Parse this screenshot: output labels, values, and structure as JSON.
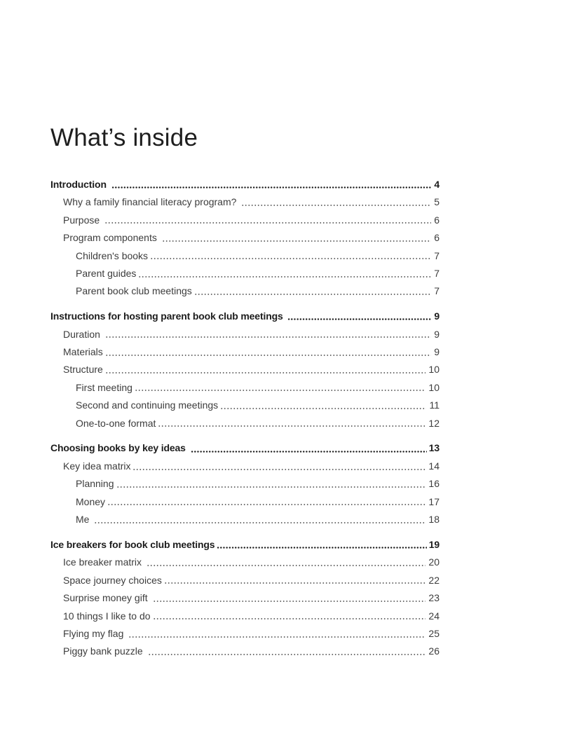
{
  "document": {
    "title": "What’s inside"
  },
  "colors": {
    "background": "#ffffff",
    "heading_text": "#1c1c1c",
    "body_text": "#3c3c3c"
  },
  "toc": {
    "sections": [
      {
        "heading": {
          "label": "Introduction ",
          "page": "4"
        },
        "items": [
          {
            "level": 2,
            "label": "Why a family financial literacy program? ",
            "page": "5"
          },
          {
            "level": 2,
            "label": "Purpose ",
            "page": "6"
          },
          {
            "level": 2,
            "label": "Program components ",
            "page": "6"
          },
          {
            "level": 3,
            "label": "Children's books",
            "page": "7"
          },
          {
            "level": 3,
            "label": "Parent guides",
            "page": "7"
          },
          {
            "level": 3,
            "label": "Parent book club meetings",
            "page": "7"
          }
        ]
      },
      {
        "heading": {
          "label": "Instructions for hosting parent book club meetings ",
          "page": "9"
        },
        "items": [
          {
            "level": 2,
            "label": "Duration ",
            "page": "9"
          },
          {
            "level": 2,
            "label": "Materials",
            "page": "9"
          },
          {
            "level": 2,
            "label": "Structure",
            "page": "10"
          },
          {
            "level": 3,
            "label": "First meeting",
            "page": "10"
          },
          {
            "level": 3,
            "label": "Second and continuing meetings",
            "page": "11"
          },
          {
            "level": 3,
            "label": "One-to-one format",
            "page": "12"
          }
        ]
      },
      {
        "heading": {
          "label": "Choosing books by key ideas ",
          "page": "13"
        },
        "items": [
          {
            "level": 2,
            "label": "Key idea matrix",
            "page": "14"
          },
          {
            "level": 3,
            "label": "Planning",
            "page": "16"
          },
          {
            "level": 3,
            "label": "Money",
            "page": "17"
          },
          {
            "level": 3,
            "label": "Me ",
            "page": "18"
          }
        ]
      },
      {
        "heading": {
          "label": "Ice breakers for book club meetings",
          "page": "19"
        },
        "items": [
          {
            "level": 2,
            "label": "Ice breaker matrix ",
            "page": "20"
          },
          {
            "level": 2,
            "label": "Space journey choices",
            "page": "22"
          },
          {
            "level": 2,
            "label": "Surprise money gift ",
            "page": "23"
          },
          {
            "level": 2,
            "label": "10 things I like to do",
            "page": "24"
          },
          {
            "level": 2,
            "label": "Flying my flag ",
            "page": "25"
          },
          {
            "level": 2,
            "label": "Piggy bank puzzle ",
            "page": "26"
          }
        ]
      }
    ]
  }
}
